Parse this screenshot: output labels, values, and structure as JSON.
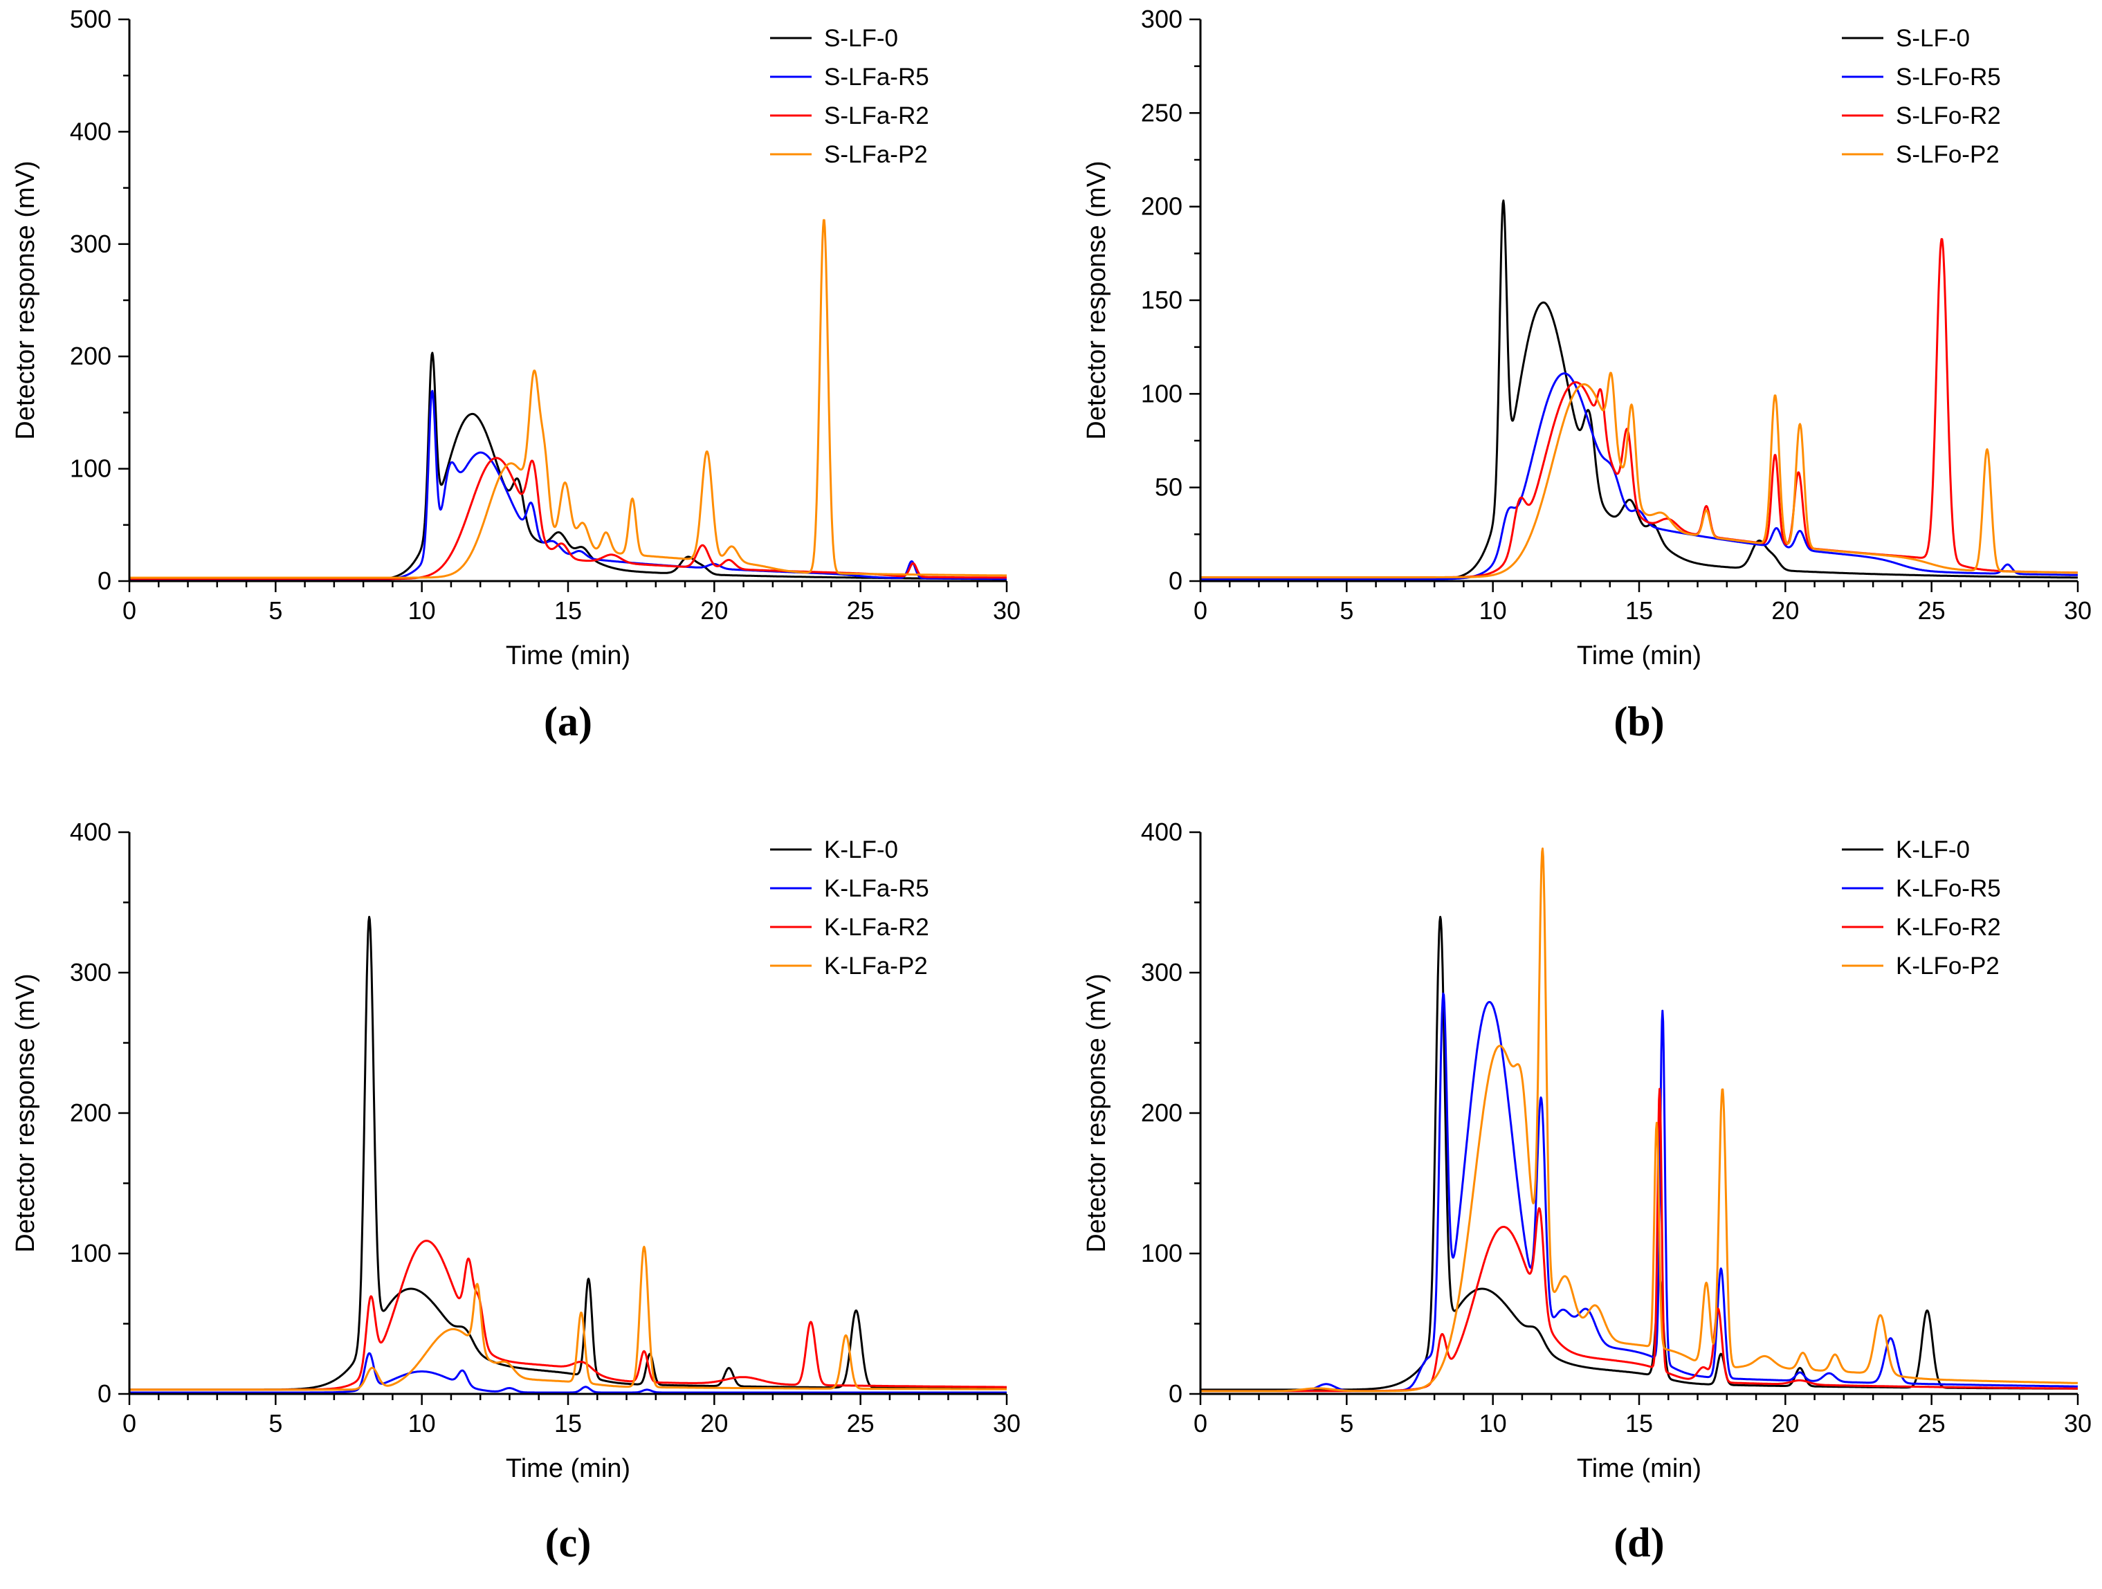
{
  "figure": {
    "colors": {
      "black": "#000000",
      "blue": "#0000ff",
      "red": "#ff0000",
      "orange": "#ff8c00"
    }
  },
  "chart_data": [
    {
      "id": "a",
      "panel_label": "(a)",
      "type": "line",
      "xlabel": "Time  (min)",
      "ylabel": "Detector response  (mV)",
      "xlim": [
        0,
        30
      ],
      "ylim": [
        0,
        500
      ],
      "xticks": [
        0,
        5,
        10,
        15,
        20,
        25,
        30
      ],
      "yticks": [
        0,
        100,
        200,
        300,
        400,
        500
      ],
      "legend": "top-right",
      "series": [
        {
          "name": "S-LF-0",
          "color": "#000000",
          "baseline": 1,
          "peaks": [
            [
              10.35,
              150,
              0.12
            ],
            [
              11.6,
              128,
              0.9
            ],
            [
              13.3,
              35,
              0.18
            ],
            [
              14.7,
              15,
              0.25
            ],
            [
              15.5,
              8,
              0.2
            ],
            [
              19.1,
              15,
              0.25
            ],
            [
              19.6,
              6,
              0.2
            ]
          ],
          "tails": [
            [
              11.8,
              45,
              1.6,
              16,
              6
            ]
          ]
        },
        {
          "name": "S-LFa-R5",
          "color": "#0000ff",
          "baseline": 1,
          "peaks": [
            [
              10.35,
              140,
              0.12
            ],
            [
              10.95,
              38,
              0.2
            ],
            [
              11.9,
              98,
              0.95
            ],
            [
              13.75,
              30,
              0.15
            ],
            [
              14.5,
              10,
              0.25
            ],
            [
              15.4,
              6,
              0.2
            ],
            [
              20.0,
              4,
              0.2
            ],
            [
              26.75,
              15,
              0.12
            ]
          ],
          "tails": [
            [
              12.0,
              32,
              1.7,
              25,
              7
            ]
          ]
        },
        {
          "name": "S-LFa-R2",
          "color": "#ff0000",
          "baseline": 2,
          "peaks": [
            [
              12.5,
              102,
              0.85
            ],
            [
              13.8,
              58,
              0.18
            ],
            [
              14.8,
              12,
              0.2
            ],
            [
              16.5,
              7,
              0.3
            ],
            [
              19.6,
              20,
              0.2
            ],
            [
              20.5,
              8,
              0.2
            ],
            [
              26.8,
              12,
              0.12
            ]
          ],
          "tails": [
            [
              13.2,
              22,
              1.8,
              26,
              8
            ]
          ]
        },
        {
          "name": "S-LFa-P2",
          "color": "#ff8c00",
          "baseline": 3,
          "peaks": [
            [
              13.0,
              95,
              0.75
            ],
            [
              13.85,
              115,
              0.17
            ],
            [
              14.2,
              60,
              0.15
            ],
            [
              14.9,
              58,
              0.18
            ],
            [
              15.5,
              25,
              0.2
            ],
            [
              16.3,
              18,
              0.15
            ],
            [
              17.2,
              50,
              0.12
            ],
            [
              19.75,
              97,
              0.18
            ],
            [
              20.6,
              14,
              0.2
            ],
            [
              23.75,
              315,
              0.14
            ]
          ],
          "tails": [
            [
              13.8,
              30,
              1.8,
              22,
              9
            ]
          ]
        }
      ]
    },
    {
      "id": "b",
      "panel_label": "(b)",
      "type": "line",
      "xlabel": "Time  (min)",
      "ylabel": "Detector response  (mV)",
      "xlim": [
        0,
        30
      ],
      "ylim": [
        0,
        300
      ],
      "xticks": [
        0,
        5,
        10,
        15,
        20,
        25,
        30
      ],
      "yticks": [
        0,
        50,
        100,
        150,
        200,
        250,
        300
      ],
      "legend": "top-right",
      "series": [
        {
          "name": "S-LF-0",
          "color": "#000000",
          "baseline": 1,
          "peaks": [
            [
              10.35,
              150,
              0.12
            ],
            [
              11.6,
              128,
              0.9
            ],
            [
              13.3,
              35,
              0.18
            ],
            [
              14.7,
              15,
              0.25
            ],
            [
              15.5,
              8,
              0.2
            ],
            [
              19.1,
              15,
              0.25
            ],
            [
              19.6,
              6,
              0.2
            ]
          ],
          "tails": [
            [
              11.8,
              45,
              1.6,
              16,
              6
            ]
          ]
        },
        {
          "name": "S-LFo-R5",
          "color": "#0000ff",
          "baseline": 1,
          "peaks": [
            [
              10.5,
              16,
              0.2
            ],
            [
              12.3,
              94,
              1.0
            ],
            [
              14.1,
              12,
              0.25
            ],
            [
              15.0,
              6,
              0.2
            ],
            [
              19.7,
              10,
              0.15
            ],
            [
              20.5,
              10,
              0.15
            ],
            [
              27.6,
              5,
              0.15
            ]
          ],
          "tails": [
            [
              12.6,
              38,
              2.0,
              24,
              9
            ]
          ]
        },
        {
          "name": "S-LFo-R2",
          "color": "#ff0000",
          "baseline": 2,
          "peaks": [
            [
              10.9,
              22,
              0.2
            ],
            [
              12.7,
              90,
              1.0
            ],
            [
              13.7,
              22,
              0.12
            ],
            [
              14.6,
              38,
              0.15
            ],
            [
              16.0,
              6,
              0.3
            ],
            [
              17.3,
              16,
              0.12
            ],
            [
              19.65,
              48,
              0.12
            ],
            [
              20.45,
              40,
              0.14
            ],
            [
              25.35,
              172,
              0.18
            ]
          ],
          "tails": [
            [
              13.0,
              34,
              2.0,
              26,
              10
            ]
          ]
        },
        {
          "name": "S-LFo-P2",
          "color": "#ff8c00",
          "baseline": 2,
          "peaks": [
            [
              13.0,
              92,
              1.0
            ],
            [
              14.05,
              35,
              0.12
            ],
            [
              14.75,
              48,
              0.13
            ],
            [
              15.8,
              8,
              0.3
            ],
            [
              17.3,
              14,
              0.12
            ],
            [
              19.65,
              80,
              0.14
            ],
            [
              20.5,
              66,
              0.14
            ],
            [
              26.9,
              65,
              0.14
            ]
          ],
          "tails": [
            [
              13.5,
              32,
              2.0,
              25,
              10
            ]
          ]
        }
      ]
    },
    {
      "id": "c",
      "panel_label": "(c)",
      "type": "line",
      "xlabel": "Time  (min)",
      "ylabel": "Detector response  (mV)",
      "xlim": [
        0,
        30
      ],
      "ylim": [
        0,
        400
      ],
      "xticks": [
        0,
        5,
        10,
        15,
        20,
        25,
        30
      ],
      "yticks": [
        0,
        100,
        200,
        300,
        400
      ],
      "legend": "top-right",
      "series": [
        {
          "name": "K-LF-0",
          "color": "#000000",
          "baseline": 3,
          "peaks": [
            [
              8.2,
              300,
              0.15
            ],
            [
              9.6,
              50,
              1.2
            ],
            [
              11.5,
              10,
              0.25
            ],
            [
              15.7,
              70,
              0.12
            ],
            [
              17.8,
              22,
              0.12
            ],
            [
              20.5,
              13,
              0.15
            ],
            [
              24.85,
              55,
              0.18
            ]
          ],
          "tails": [
            [
              8.4,
              28,
              1.5,
              16,
              8
            ]
          ]
        },
        {
          "name": "K-LFa-R5",
          "color": "#0000ff",
          "baseline": 1,
          "peaks": [
            [
              8.2,
              25,
              0.15
            ],
            [
              10.0,
              15,
              1.0
            ],
            [
              11.4,
              10,
              0.15
            ],
            [
              13.0,
              3,
              0.2
            ],
            [
              15.6,
              4,
              0.15
            ],
            [
              17.7,
              2,
              0.15
            ]
          ],
          "tails": []
        },
        {
          "name": "K-LFa-R2",
          "color": "#ff0000",
          "baseline": 3,
          "peaks": [
            [
              8.25,
              50,
              0.15
            ],
            [
              10.1,
              88,
              0.95
            ],
            [
              11.6,
              45,
              0.14
            ],
            [
              11.95,
              30,
              0.15
            ],
            [
              15.5,
              6,
              0.3
            ],
            [
              17.6,
              22,
              0.13
            ],
            [
              21.0,
              5,
              0.6
            ],
            [
              23.3,
              45,
              0.16
            ]
          ],
          "tails": [
            [
              9.5,
              26,
              1.8,
              16,
              12
            ]
          ]
        },
        {
          "name": "K-LFa-P2",
          "color": "#ff8c00",
          "baseline": 3,
          "peaks": [
            [
              8.3,
              15,
              0.2
            ],
            [
              11.0,
              38,
              0.9
            ],
            [
              11.9,
              45,
              0.12
            ],
            [
              12.9,
              8,
              0.25
            ],
            [
              15.45,
              50,
              0.12
            ],
            [
              17.6,
              100,
              0.14
            ],
            [
              24.5,
              38,
              0.15
            ]
          ],
          "tails": [
            [
              11.0,
              10,
              1.8,
              16,
              8
            ]
          ]
        }
      ]
    },
    {
      "id": "d",
      "panel_label": "(d)",
      "type": "line",
      "xlabel": "Time  (min)",
      "ylabel": "Detector response  (mV)",
      "xlim": [
        0,
        30
      ],
      "ylim": [
        0,
        400
      ],
      "xticks": [
        0,
        5,
        10,
        15,
        20,
        25,
        30
      ],
      "yticks": [
        0,
        100,
        200,
        300,
        400
      ],
      "legend": "top-right",
      "series": [
        {
          "name": "K-LF-0",
          "color": "#000000",
          "baseline": 3,
          "peaks": [
            [
              8.2,
              300,
              0.15
            ],
            [
              9.6,
              50,
              1.2
            ],
            [
              11.5,
              10,
              0.25
            ],
            [
              15.7,
              70,
              0.12
            ],
            [
              17.8,
              22,
              0.12
            ],
            [
              20.5,
              13,
              0.15
            ],
            [
              24.85,
              55,
              0.18
            ]
          ],
          "tails": [
            [
              8.4,
              28,
              1.5,
              16,
              8
            ]
          ]
        },
        {
          "name": "K-LFo-R5",
          "color": "#0000ff",
          "baseline": 2,
          "peaks": [
            [
              4.3,
              5,
              0.3
            ],
            [
              7.7,
              14,
              0.25
            ],
            [
              8.3,
              240,
              0.13
            ],
            [
              9.85,
              265,
              0.8
            ],
            [
              11.65,
              155,
              0.14
            ],
            [
              12.4,
              22,
              0.3
            ],
            [
              13.2,
              25,
              0.3
            ],
            [
              15.8,
              250,
              0.08
            ],
            [
              17.8,
              78,
              0.12
            ],
            [
              20.5,
              6,
              0.15
            ],
            [
              21.5,
              6,
              0.2
            ],
            [
              23.6,
              32,
              0.2
            ]
          ],
          "tails": [
            [
              10.5,
              42,
              2.0,
              16,
              12
            ]
          ]
        },
        {
          "name": "K-LFo-R2",
          "color": "#ff0000",
          "baseline": 2,
          "peaks": [
            [
              8.25,
              30,
              0.15
            ],
            [
              10.3,
              95,
              0.9
            ],
            [
              11.6,
              70,
              0.14
            ],
            [
              15.7,
              200,
              0.07
            ],
            [
              17.7,
              52,
              0.13
            ],
            [
              17.2,
              10,
              0.2
            ],
            [
              20.5,
              3,
              0.3
            ]
          ],
          "tails": [
            [
              9.8,
              34,
              2.0,
              16,
              10
            ]
          ]
        },
        {
          "name": "K-LFo-P2",
          "color": "#ff8c00",
          "baseline": 2,
          "peaks": [
            [
              4.0,
              2,
              0.5
            ],
            [
              10.2,
              235,
              0.85
            ],
            [
              11.0,
              50,
              0.2
            ],
            [
              11.7,
              305,
              0.12
            ],
            [
              12.5,
              40,
              0.3
            ],
            [
              13.5,
              25,
              0.3
            ],
            [
              15.6,
              160,
              0.08
            ],
            [
              17.3,
              60,
              0.13
            ],
            [
              17.85,
              200,
              0.12
            ],
            [
              19.3,
              8,
              0.3
            ],
            [
              20.6,
              12,
              0.15
            ],
            [
              21.7,
              12,
              0.15
            ],
            [
              23.25,
              42,
              0.2
            ]
          ],
          "tails": [
            [
              11.0,
              44,
              2.0,
              17,
              14
            ],
            [
              18.0,
              8,
              0.8,
              24,
              12
            ]
          ]
        }
      ]
    }
  ]
}
